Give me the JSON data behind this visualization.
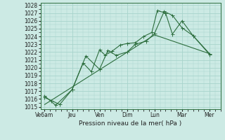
{
  "background_color": "#cceae4",
  "grid_color": "#a8d4cc",
  "line_color": "#2d6e3e",
  "xlabel": "Pression niveau de la mer( hPa )",
  "ylim_min": 1015,
  "ylim_max": 1028,
  "xtick_labels": [
    "Ve6am",
    "Jeu",
    "Ven",
    "Dim",
    "Lun",
    "Mar",
    "Mer"
  ],
  "xtick_positions": [
    0,
    1,
    2,
    3,
    4,
    5,
    6
  ],
  "ytick_values": [
    1015,
    1016,
    1017,
    1018,
    1019,
    1020,
    1021,
    1022,
    1023,
    1024,
    1025,
    1026,
    1027,
    1028
  ],
  "series1_x": [
    0,
    4,
    6
  ],
  "series1_y": [
    1015.3,
    1024.2,
    1021.8
  ],
  "series2_x": [
    0,
    0.25,
    0.55,
    1.0,
    1.4,
    1.7,
    2.0,
    2.2,
    2.45,
    2.75,
    3.0,
    3.3,
    3.6,
    3.9,
    4.1,
    4.4,
    4.65,
    5.0,
    5.4,
    6.0
  ],
  "series2_y": [
    1016.2,
    1015.8,
    1015.3,
    1017.2,
    1020.6,
    1019.5,
    1022.3,
    1021.6,
    1022.1,
    1022.9,
    1023.1,
    1023.2,
    1024.0,
    1024.5,
    1027.3,
    1027.0,
    1024.3,
    1026.0,
    1024.1,
    1021.8
  ],
  "series3_x": [
    0,
    0.4,
    1.0,
    1.5,
    2.0,
    2.3,
    2.6,
    3.0,
    3.3,
    3.7,
    4.0,
    4.35,
    4.65,
    5.0,
    5.4,
    6.0
  ],
  "series3_y": [
    1016.4,
    1015.2,
    1017.2,
    1021.5,
    1019.8,
    1022.2,
    1021.6,
    1022.0,
    1023.0,
    1023.4,
    1024.4,
    1027.2,
    1026.7,
    1025.1,
    1024.1,
    1021.7
  ],
  "marker_size": 2.0,
  "line_width": 0.8
}
